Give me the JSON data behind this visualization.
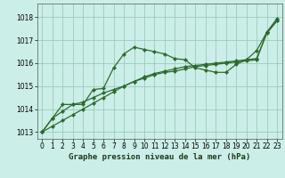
{
  "title": "Graphe pression niveau de la mer (hPa)",
  "bg_color": "#cceee8",
  "grid_color": "#99ccbb",
  "line_color": "#2d6a2d",
  "marker_color": "#2d6a2d",
  "xlim": [
    -0.5,
    23.5
  ],
  "ylim": [
    1012.7,
    1018.6
  ],
  "yticks": [
    1013,
    1014,
    1015,
    1016,
    1017,
    1018
  ],
  "xticks": [
    0,
    1,
    2,
    3,
    4,
    5,
    6,
    7,
    8,
    9,
    10,
    11,
    12,
    13,
    14,
    15,
    16,
    17,
    18,
    19,
    20,
    21,
    22,
    23
  ],
  "series1": [
    1013.0,
    1013.6,
    1013.9,
    1014.2,
    1014.2,
    1014.85,
    1014.9,
    1015.8,
    1016.4,
    1016.7,
    1016.6,
    1016.5,
    1016.4,
    1016.2,
    1016.15,
    1015.8,
    1015.7,
    1015.6,
    1015.6,
    1015.95,
    1016.15,
    1016.55,
    1017.35,
    1017.95
  ],
  "series2": [
    1013.0,
    1013.25,
    1013.5,
    1013.75,
    1014.0,
    1014.25,
    1014.5,
    1014.75,
    1015.0,
    1015.2,
    1015.4,
    1015.55,
    1015.65,
    1015.75,
    1015.85,
    1015.9,
    1015.95,
    1016.0,
    1016.05,
    1016.1,
    1016.15,
    1016.2,
    1017.3,
    1017.85
  ],
  "series3": [
    1013.0,
    1013.6,
    1014.2,
    1014.2,
    1014.3,
    1014.5,
    1014.7,
    1014.85,
    1015.0,
    1015.2,
    1015.35,
    1015.5,
    1015.6,
    1015.65,
    1015.75,
    1015.85,
    1015.9,
    1015.95,
    1016.0,
    1016.05,
    1016.1,
    1016.15,
    1017.35,
    1017.85
  ],
  "title_fontsize": 6.5,
  "tick_fontsize": 5.5
}
